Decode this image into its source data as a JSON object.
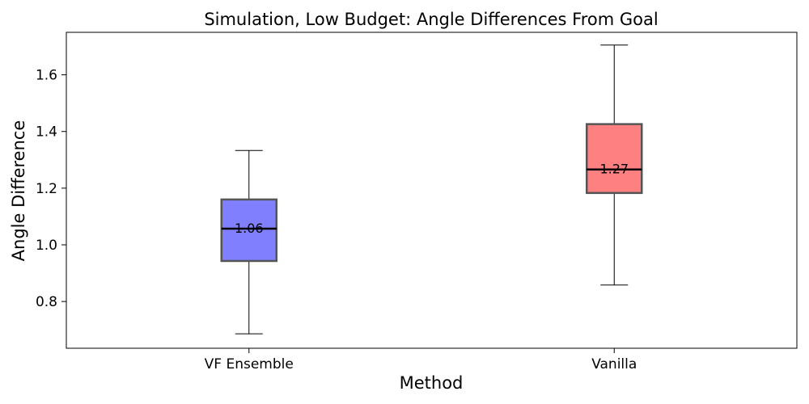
{
  "chart_data": {
    "type": "box",
    "title": "Simulation, Low Budget: Angle Differences From Goal",
    "xlabel": "Method",
    "ylabel": "Angle Difference",
    "ylim": [
      0.635,
      1.75
    ],
    "yticks": [
      0.8,
      1.0,
      1.2,
      1.4,
      1.6
    ],
    "ytick_labels": [
      "0.8",
      "1.0",
      "1.2",
      "1.4",
      "1.6"
    ],
    "grid": false,
    "categories": [
      "VF Ensemble",
      "Vanilla"
    ],
    "boxes": [
      {
        "category": "VF Ensemble",
        "whisker_low": 0.686,
        "q1": 0.943,
        "median": 1.057,
        "q3": 1.16,
        "whisker_high": 1.333,
        "median_label": "1.06",
        "color": "#8080ff"
      },
      {
        "category": "Vanilla",
        "whisker_low": 0.858,
        "q1": 1.183,
        "median": 1.266,
        "q3": 1.426,
        "whisker_high": 1.705,
        "median_label": "1.27",
        "color": "#ff8080"
      }
    ]
  }
}
